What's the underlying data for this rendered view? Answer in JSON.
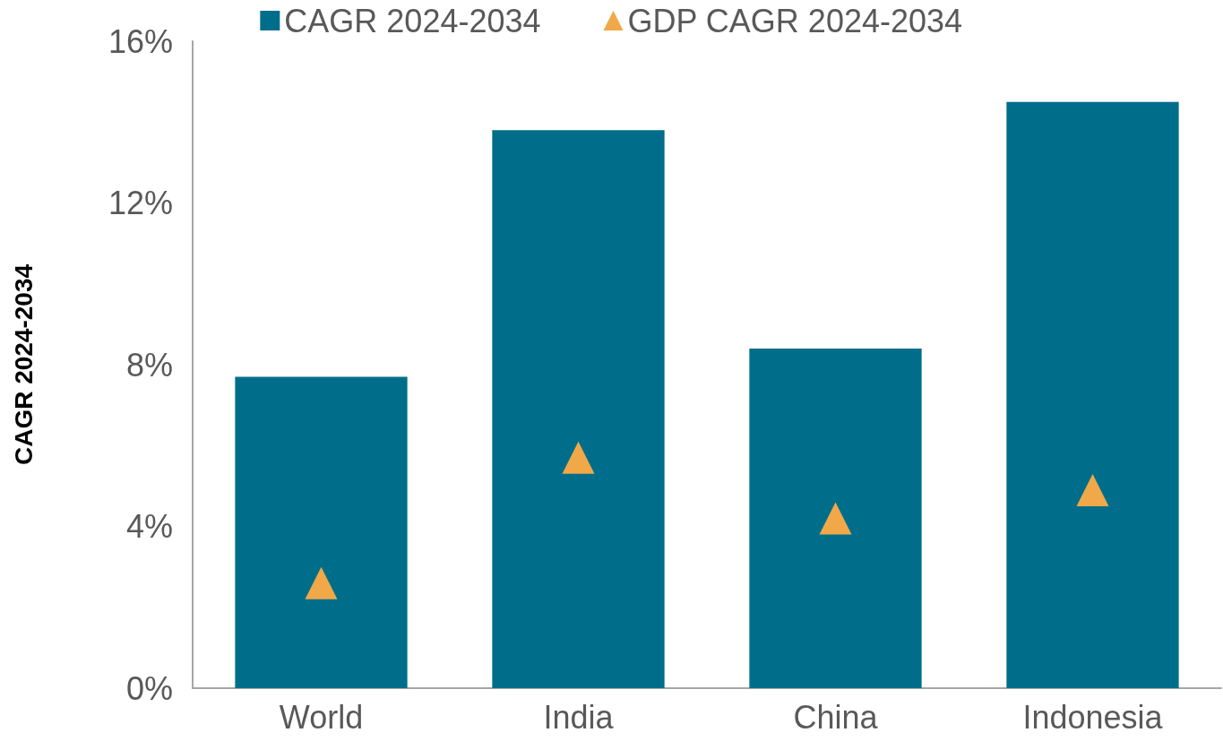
{
  "chart_data": {
    "type": "bar",
    "ylabel": "CAGR 2024-2034",
    "categories": [
      "World",
      "India",
      "China",
      "Indonesia"
    ],
    "series": [
      {
        "name": "CAGR 2024-2034",
        "color": "#006e8a",
        "values": [
          7.7,
          13.8,
          8.4,
          14.5
        ]
      },
      {
        "name": "GDP CAGR 2024-2034",
        "type": "scatter",
        "marker": "triangle",
        "color": "#f0a848",
        "x": [
          "World",
          "India",
          "China",
          "Indonesia"
        ],
        "values": [
          2.6,
          5.7,
          4.2,
          4.9
        ]
      }
    ],
    "ylim": [
      0,
      16
    ],
    "yticks": [
      {
        "value": 0,
        "label": "0%"
      },
      {
        "value": 4,
        "label": "4%"
      },
      {
        "value": 8,
        "label": "8%"
      },
      {
        "value": 12,
        "label": "12%"
      },
      {
        "value": 16,
        "label": "16%"
      }
    ],
    "grid": false,
    "legend": "top"
  }
}
